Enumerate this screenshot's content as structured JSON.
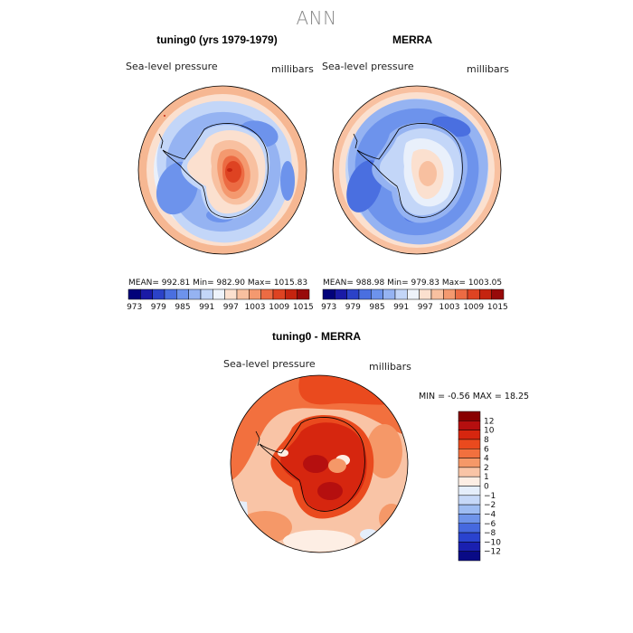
{
  "main_title": "ANN",
  "panels": [
    {
      "title": "tuning0 (yrs 1979-1979)",
      "variable": "Sea-level pressure",
      "units": "millibars",
      "stats": "MEAN= 992.81   Min= 982.90   Max= 1015.83"
    },
    {
      "title": "MERRA",
      "variable": "Sea-level pressure",
      "units": "millibars",
      "stats": "MEAN= 988.98   Min= 979.83   Max= 1003.05"
    }
  ],
  "diff_panel": {
    "title": "tuning0 - MERRA",
    "variable": "Sea-level pressure",
    "units": "millibars",
    "minmax": "MIN =   -0.56 MAX =   18.25"
  },
  "chart_data": [
    {
      "type": "heatmap",
      "title": "tuning0 (yrs 1979-1979)",
      "variable": "Sea-level pressure",
      "units": "millibars",
      "projection": "south polar stereographic",
      "mean": 992.81,
      "min": 982.9,
      "max": 1015.83,
      "colorbar_levels": [
        973,
        976,
        979,
        982,
        985,
        988,
        991,
        994,
        997,
        1000,
        1003,
        1006,
        1009,
        1012,
        1015
      ],
      "colorbar_tick_labels": [
        "973",
        "979",
        "985",
        "991",
        "997",
        "1003",
        "1009",
        "1015"
      ]
    },
    {
      "type": "heatmap",
      "title": "MERRA",
      "variable": "Sea-level pressure",
      "units": "millibars",
      "projection": "south polar stereographic",
      "mean": 988.98,
      "min": 979.83,
      "max": 1003.05,
      "colorbar_levels": [
        973,
        976,
        979,
        982,
        985,
        988,
        991,
        994,
        997,
        1000,
        1003,
        1006,
        1009,
        1012,
        1015
      ],
      "colorbar_tick_labels": [
        "973",
        "979",
        "985",
        "991",
        "997",
        "1003",
        "1009",
        "1015"
      ]
    },
    {
      "type": "heatmap",
      "title": "tuning0 - MERRA",
      "variable": "Sea-level pressure",
      "units": "millibars",
      "projection": "south polar stereographic",
      "min": -0.56,
      "max": 18.25,
      "colorbar_levels": [
        -12,
        -10,
        -8,
        -6,
        -4,
        -2,
        -1,
        0,
        1,
        2,
        4,
        6,
        8,
        10,
        12
      ],
      "colorbar_tick_labels": [
        "12",
        "10",
        "8",
        "6",
        "4",
        "2",
        "1",
        "0",
        "−1",
        "−2",
        "−4",
        "−6",
        "−8",
        "−10",
        "−12"
      ]
    }
  ],
  "colors": {
    "abs_palette": [
      "#02027a",
      "#1a1aa6",
      "#2b42c8",
      "#4a6fe0",
      "#6d93ec",
      "#95b3f2",
      "#c3d6f8",
      "#eef3fb",
      "#fbe0cf",
      "#f8c0a0",
      "#f4996f",
      "#ec6b43",
      "#de4322",
      "#c5240f",
      "#980a0a"
    ],
    "diff_palette": [
      "#880000",
      "#b50f0f",
      "#d6260f",
      "#ea4a1e",
      "#f2703e",
      "#f59868",
      "#f9c4a6",
      "#fdeee4",
      "#e5eefb",
      "#c6d8f8",
      "#9ebcf2",
      "#6f94ea",
      "#4669df",
      "#2a43cf",
      "#1a20b0",
      "#090a86"
    ]
  }
}
